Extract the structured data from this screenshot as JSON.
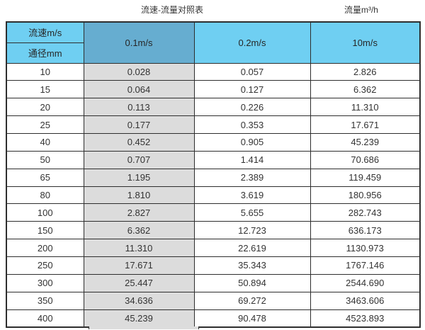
{
  "page": {
    "title_left": "流速-流量对照表",
    "title_right": "流量m³/h"
  },
  "table": {
    "corner_top": "流速m/s",
    "corner_bottom": "通径mm",
    "velocity_columns": [
      "0.1m/s",
      "0.2m/s",
      "10m/s"
    ],
    "rows": [
      [
        "10",
        "0.028",
        "0.057",
        "2.826"
      ],
      [
        "15",
        "0.064",
        "0.127",
        "6.362"
      ],
      [
        "20",
        "0.113",
        "0.226",
        "11.310"
      ],
      [
        "25",
        "0.177",
        "0.353",
        "17.671"
      ],
      [
        "40",
        "0.452",
        "0.905",
        "45.239"
      ],
      [
        "50",
        "0.707",
        "1.414",
        "70.686"
      ],
      [
        "65",
        "1.195",
        "2.389",
        "119.459"
      ],
      [
        "80",
        "1.810",
        "3.619",
        "180.956"
      ],
      [
        "100",
        "2.827",
        "5.655",
        "282.743"
      ],
      [
        "150",
        "6.362",
        "12.723",
        "636.173"
      ],
      [
        "200",
        "11.310",
        "22.619",
        "1130.973"
      ],
      [
        "250",
        "17.671",
        "35.343",
        "1767.146"
      ],
      [
        "300",
        "25.447",
        "50.894",
        "2544.690"
      ],
      [
        "350",
        "34.636",
        "69.272",
        "3463.606"
      ],
      [
        "400",
        "45.239",
        "90.478",
        "4523.893"
      ]
    ]
  },
  "colors": {
    "header_blue": "#6fcff2",
    "header_blue_dark": "#66add0",
    "shaded_column_gray": "#dcdcdc",
    "border": "#2e2e2e"
  },
  "chart_data": {
    "type": "table",
    "title": "流速-流量对照表",
    "value_unit_label": "流量m³/h",
    "column_header": "流速m/s",
    "row_header": "通径mm",
    "columns": [
      "0.1m/s",
      "0.2m/s",
      "10m/s"
    ],
    "diameters_mm": [
      10,
      15,
      20,
      25,
      40,
      50,
      65,
      80,
      100,
      150,
      200,
      250,
      300,
      350,
      400
    ],
    "flow_rates_m3h": [
      [
        0.028,
        0.057,
        2.826
      ],
      [
        0.064,
        0.127,
        6.362
      ],
      [
        0.113,
        0.226,
        11.31
      ],
      [
        0.177,
        0.353,
        17.671
      ],
      [
        0.452,
        0.905,
        45.239
      ],
      [
        0.707,
        1.414,
        70.686
      ],
      [
        1.195,
        2.389,
        119.459
      ],
      [
        1.81,
        3.619,
        180.956
      ],
      [
        2.827,
        5.655,
        282.743
      ],
      [
        6.362,
        12.723,
        636.173
      ],
      [
        11.31,
        22.619,
        1130.973
      ],
      [
        17.671,
        35.343,
        1767.146
      ],
      [
        25.447,
        50.894,
        2544.69
      ],
      [
        34.636,
        69.272,
        3463.606
      ],
      [
        45.239,
        90.478,
        4523.893
      ]
    ],
    "layout": {
      "shaded_column": "0.1m/s",
      "grid": true,
      "legend": false
    }
  }
}
